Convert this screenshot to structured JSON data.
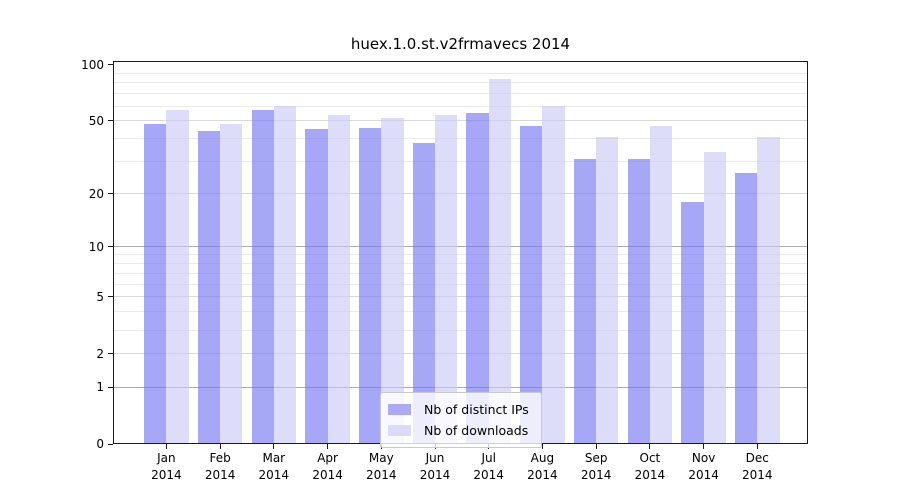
{
  "title": "huex.1.0.st.v2frmavecs 2014",
  "chart_data": {
    "type": "bar",
    "title": "huex.1.0.st.v2frmavecs 2014",
    "categories": [
      "Jan 2014",
      "Feb 2014",
      "Mar 2014",
      "Apr 2014",
      "May 2014",
      "Jun 2014",
      "Jul 2014",
      "Aug 2014",
      "Sep 2014",
      "Oct 2014",
      "Nov 2014",
      "Dec 2014"
    ],
    "month_labels": [
      "Jan",
      "Feb",
      "Mar",
      "Apr",
      "May",
      "Jun",
      "Jul",
      "Aug",
      "Sep",
      "Oct",
      "Nov",
      "Dec"
    ],
    "year_label": "2014",
    "series": [
      {
        "name": "Nb of distinct IPs",
        "color": "#aaabf7",
        "fill_rgba": "rgba(113,113,242,0.62)",
        "values": [
          48,
          44,
          57,
          45,
          46,
          38,
          55,
          47,
          31,
          31,
          18,
          26
        ]
      },
      {
        "name": "Nb of downloads",
        "color": "#dbdbf9",
        "fill_rgba": "rgba(200,200,246,0.62)",
        "values": [
          57,
          48,
          60,
          54,
          52,
          54,
          84,
          60,
          41,
          47,
          34,
          41
        ]
      }
    ],
    "yscale": "log1p",
    "ylim": [
      0,
      105
    ],
    "y_ticks": [
      100,
      50,
      20,
      10,
      5,
      2,
      1,
      0
    ],
    "y_gridlines": {
      "major": [
        1,
        10
      ],
      "medium": [
        2,
        5,
        20,
        50
      ],
      "minor": [
        3,
        4,
        6,
        7,
        8,
        9,
        30,
        40,
        60,
        70,
        80,
        90
      ]
    },
    "grid": true,
    "legend_position": "lower center",
    "colors": {
      "axis": "#1c1c1c",
      "grid_major": "#ababab",
      "grid_medium": "#d9d9d9",
      "grid_minor": "#ebebeb",
      "background": "#ffffff"
    }
  }
}
